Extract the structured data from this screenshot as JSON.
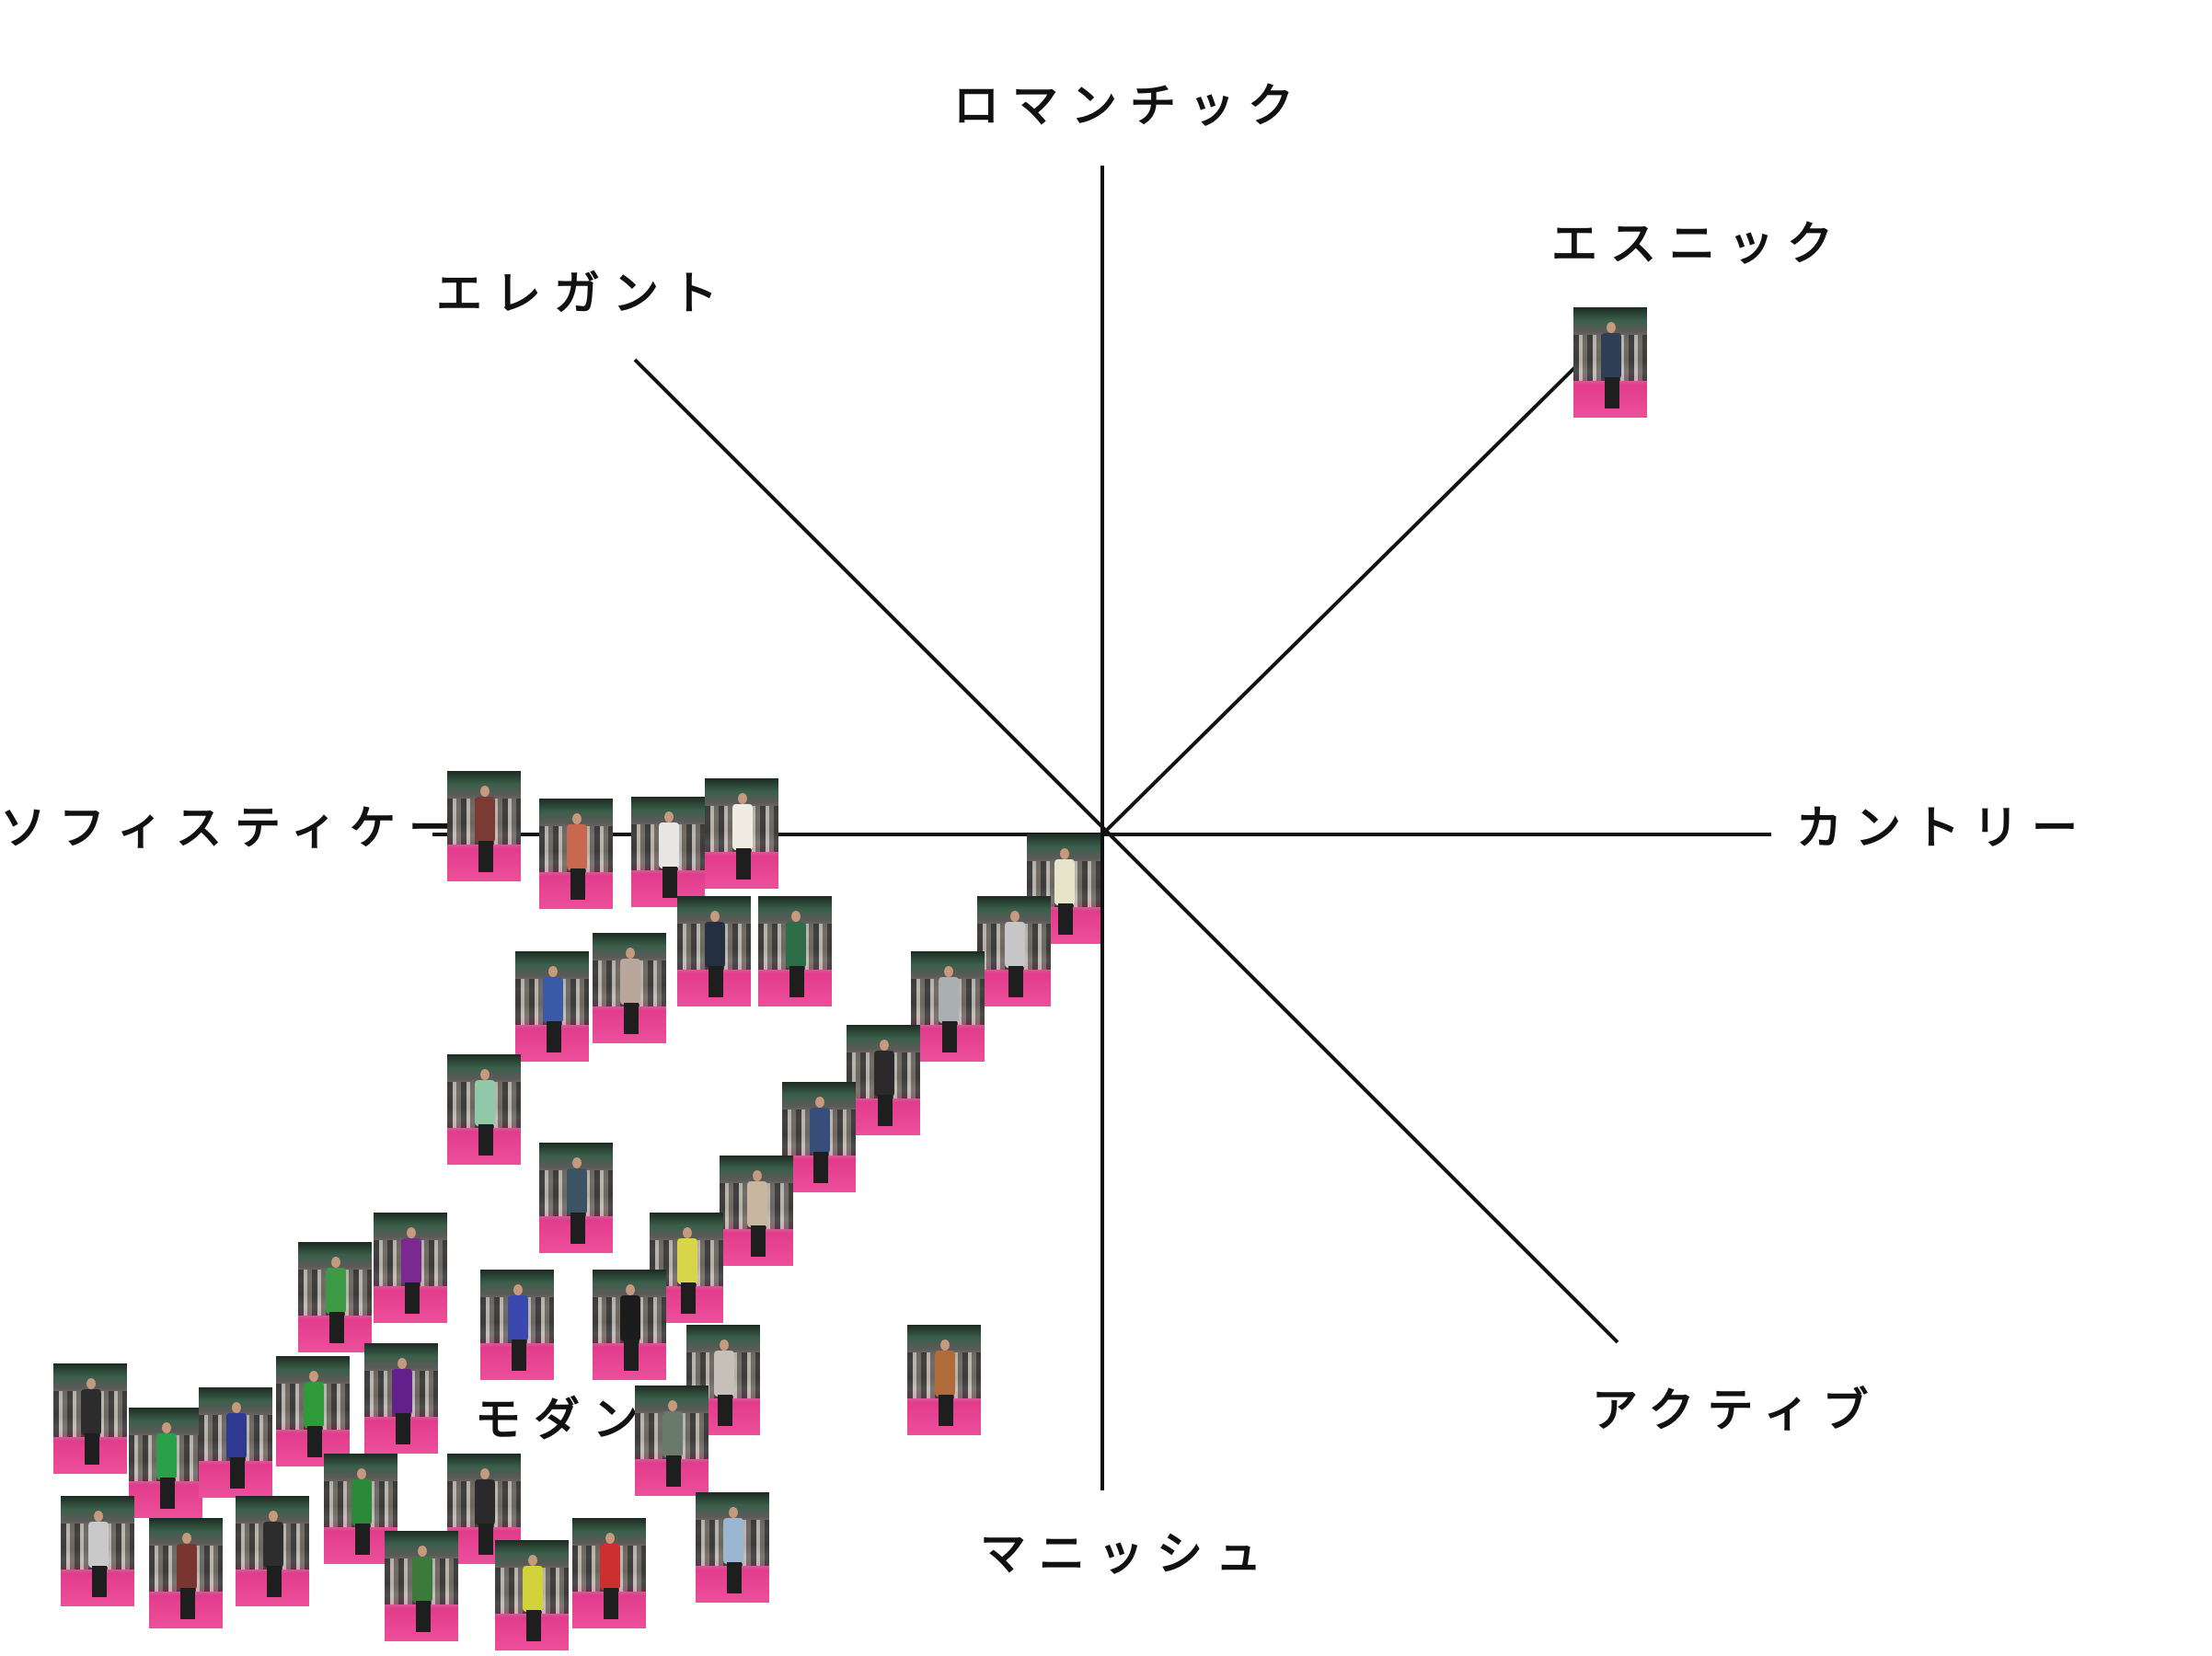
{
  "axes": {
    "romantic": "ロマンチック",
    "ethnic": "エスニック",
    "elegant": "エレガント",
    "sophisticate": "ソフィスティケート",
    "country": "カントリー",
    "modern": "モダン",
    "active": "アクティブ",
    "mannish": "マニッシュ"
  },
  "colors": {
    "line": "#111111",
    "runway": "#e8418f",
    "background": "#ffffff"
  },
  "look_outfit_colors": [
    "#2d3e55",
    "#7a3b34",
    "#c8694f",
    "#e8e6e2",
    "#f0ece2",
    "#3a5aa6",
    "#b8a79a",
    "#243040",
    "#2d6d47",
    "#8fc9a8",
    "#3b5363",
    "#e8e4c9",
    "#c6c6c6",
    "#aab0b2",
    "#2a2a2a",
    "#374d7a",
    "#c7b6a0",
    "#d8d54a",
    "#7a2a8f",
    "#3c9a44",
    "#3a48b0",
    "#1c1c1c",
    "#c7c0b8",
    "#d07a2c",
    "#2c2c2c",
    "#2ba04a",
    "#2d3a8f",
    "#2f9a3a",
    "#63208a",
    "#6a7a6a",
    "#2b8a3a",
    "#2a2a2a",
    "#c8c9c8",
    "#7a3530",
    "#2d2d2d",
    "#3b7a3a",
    "#d2d23a",
    "#cc2f2f",
    "#9ab6d0",
    "#b26b3a"
  ]
}
